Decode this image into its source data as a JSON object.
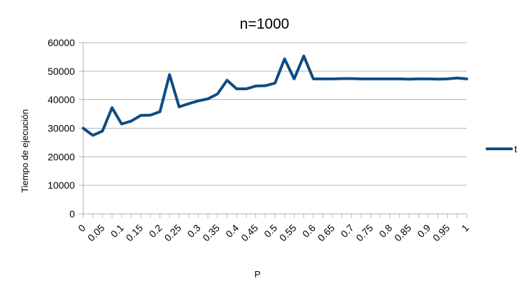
{
  "chart_data": {
    "type": "line",
    "title": "n=1000",
    "xlabel": "P",
    "ylabel": "Tiempo de ejecución",
    "ylim": [
      0,
      60000
    ],
    "yticks": [
      "0",
      "10000",
      "20000",
      "30000",
      "40000",
      "50000",
      "60000"
    ],
    "x": [
      0,
      0.025,
      0.05,
      0.075,
      0.1,
      0.125,
      0.15,
      0.175,
      0.2,
      0.225,
      0.25,
      0.275,
      0.3,
      0.325,
      0.35,
      0.375,
      0.4,
      0.425,
      0.45,
      0.475,
      0.5,
      0.525,
      0.55,
      0.575,
      0.6,
      0.625,
      0.65,
      0.675,
      0.7,
      0.725,
      0.75,
      0.775,
      0.8,
      0.825,
      0.85,
      0.875,
      0.9,
      0.925,
      0.95,
      0.975,
      1
    ],
    "xtick_labels": [
      "0",
      "0.05",
      "0.1",
      "0.15",
      "0.2",
      "0.25",
      "0.3",
      "0.35",
      "0.4",
      "0.45",
      "0.5",
      "0.55",
      "0.6",
      "0.65",
      "0.7",
      "0.75",
      "0.8",
      "0.85",
      "0.9",
      "0.95",
      "1"
    ],
    "series": [
      {
        "name": "t",
        "color": "#0f4c81",
        "values": [
          30000,
          27500,
          29000,
          37200,
          31500,
          32500,
          34500,
          34600,
          35800,
          48800,
          37500,
          38600,
          39600,
          40300,
          42000,
          46800,
          43800,
          43800,
          44800,
          44900,
          45800,
          54300,
          47300,
          55300,
          47300,
          47300,
          47300,
          47400,
          47400,
          47300,
          47300,
          47300,
          47300,
          47300,
          47200,
          47300,
          47300,
          47200,
          47300,
          47600,
          47300
        ]
      }
    ],
    "grid": true,
    "legend": "right"
  }
}
